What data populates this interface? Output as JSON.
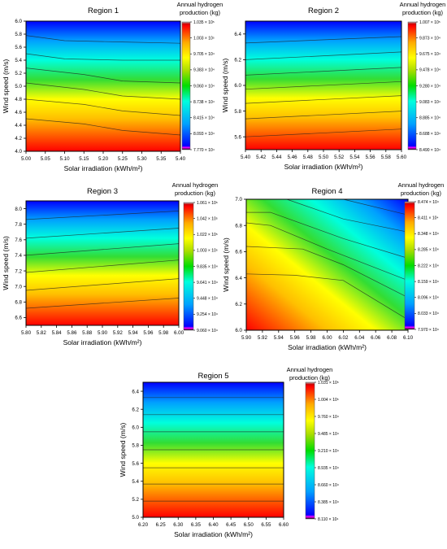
{
  "chart_data": [
    {
      "type": "heatmap",
      "title": "Region 1",
      "xlabel": "Solar irradiation (kWh/m²)",
      "ylabel": "Wind speed (m/s)",
      "xlim": [
        5.0,
        5.4
      ],
      "ylim": [
        4.0,
        6.0
      ],
      "x_ticks": [
        "5.00",
        "5.05",
        "5.10",
        "5.15",
        "5.20",
        "5.25",
        "5.30",
        "5.35",
        "5.40"
      ],
      "y_ticks": [
        "4.0",
        "4.2",
        "4.4",
        "4.6",
        "4.8",
        "5.0",
        "5.2",
        "5.4",
        "5.6",
        "5.8",
        "6.0"
      ],
      "colorbar_title": [
        "Annual hydrogen",
        "production (kg)"
      ],
      "colorbar_range": [
        7.77,
        10.35
      ],
      "colorbar_ticks": [
        "1.035 × 10⁵",
        "1.003 × 10⁵",
        "9.705 × 10⁴",
        "9.383 × 10⁴",
        "9.060 × 10⁴",
        "8.738 × 10⁴",
        "8.415 × 10⁴",
        "8.093 × 10⁴",
        "7.770 × 10⁴"
      ],
      "contour_lines": [
        {
          "x": [
            5.0,
            5.15,
            5.25,
            5.4
          ],
          "y": [
            4.5,
            4.42,
            4.32,
            4.25
          ]
        },
        {
          "x": [
            5.0,
            5.15,
            5.25,
            5.4
          ],
          "y": [
            4.8,
            4.72,
            4.62,
            4.55
          ]
        },
        {
          "x": [
            5.0,
            5.15,
            5.25,
            5.4
          ],
          "y": [
            5.05,
            4.95,
            4.85,
            4.8
          ]
        },
        {
          "x": [
            5.0,
            5.15,
            5.25,
            5.4
          ],
          "y": [
            5.28,
            5.18,
            5.08,
            5.05
          ]
        },
        {
          "x": [
            5.0,
            5.1,
            5.25,
            5.4
          ],
          "y": [
            5.5,
            5.42,
            5.4,
            5.4
          ]
        },
        {
          "x": [
            5.0,
            5.1,
            5.25,
            5.4
          ],
          "y": [
            5.78,
            5.7,
            5.68,
            5.66
          ]
        }
      ]
    },
    {
      "type": "heatmap",
      "title": "Region 2",
      "xlabel": "Solar irradiation (kWh/m²)",
      "ylabel": "Wind speed (m/s)",
      "xlim": [
        5.4,
        5.6
      ],
      "ylim": [
        5.5,
        6.5
      ],
      "x_ticks": [
        "5.40",
        "5.42",
        "5.44",
        "5.46",
        "5.48",
        "5.50",
        "5.52",
        "5.54",
        "5.56",
        "5.58",
        "5.60"
      ],
      "y_ticks": [
        "5.6",
        "5.8",
        "6.0",
        "6.2",
        "6.4"
      ],
      "colorbar_title": [
        "Annual hydrogen",
        "production (kg)"
      ],
      "colorbar_range": [
        8.49,
        10.07
      ],
      "colorbar_ticks": [
        "1.007 × 10⁵",
        "9.873 × 10⁴",
        "9.675 × 10⁴",
        "9.478 × 10⁴",
        "9.280 × 10⁴",
        "9.083 × 10⁴",
        "8.885 × 10⁴",
        "8.688 × 10⁴",
        "8.490 × 10⁴"
      ],
      "contour_lines": [
        {
          "x": [
            5.4,
            5.6
          ],
          "y": [
            5.6,
            5.66
          ]
        },
        {
          "x": [
            5.4,
            5.6
          ],
          "y": [
            5.74,
            5.8
          ]
        },
        {
          "x": [
            5.4,
            5.6
          ],
          "y": [
            5.86,
            5.92
          ]
        },
        {
          "x": [
            5.4,
            5.6
          ],
          "y": [
            5.97,
            6.03
          ]
        },
        {
          "x": [
            5.4,
            5.6
          ],
          "y": [
            6.08,
            6.14
          ]
        },
        {
          "x": [
            5.4,
            5.6
          ],
          "y": [
            6.2,
            6.26
          ]
        },
        {
          "x": [
            5.4,
            5.6
          ],
          "y": [
            6.33,
            6.38
          ]
        }
      ]
    },
    {
      "type": "heatmap",
      "title": "Region 3",
      "xlabel": "Solar irradiation (kWh/m²)",
      "ylabel": "Wind speed (m/s)",
      "xlim": [
        5.8,
        6.0
      ],
      "ylim": [
        6.5,
        8.1
      ],
      "x_ticks": [
        "5.80",
        "5.82",
        "5.84",
        "5.86",
        "5.88",
        "5.90",
        "5.92",
        "5.94",
        "5.96",
        "5.98",
        "6.00"
      ],
      "y_ticks": [
        "6.6",
        "6.8",
        "7.0",
        "7.2",
        "7.4",
        "7.6",
        "7.8",
        "8.0"
      ],
      "colorbar_title": [
        "Annual hydrogen",
        "production (kg)"
      ],
      "colorbar_range": [
        9.06,
        10.61
      ],
      "colorbar_ticks": [
        "1.061 × 10⁵",
        "1.042 × 10⁵",
        "1.022 × 10⁵",
        "1.003 × 10⁵",
        "9.835 × 10⁴",
        "9.641 × 10⁴",
        "9.448 × 10⁴",
        "9.254 × 10⁴",
        "9.060 × 10⁴"
      ],
      "contour_lines": [
        {
          "x": [
            5.8,
            6.0
          ],
          "y": [
            6.72,
            6.85
          ]
        },
        {
          "x": [
            5.8,
            6.0
          ],
          "y": [
            6.95,
            7.1
          ]
        },
        {
          "x": [
            5.8,
            6.0
          ],
          "y": [
            7.18,
            7.34
          ]
        },
        {
          "x": [
            5.8,
            6.0
          ],
          "y": [
            7.4,
            7.55
          ]
        },
        {
          "x": [
            5.8,
            6.0
          ],
          "y": [
            7.62,
            7.75
          ]
        },
        {
          "x": [
            5.8,
            6.0
          ],
          "y": [
            7.86,
            7.97
          ]
        }
      ]
    },
    {
      "type": "heatmap",
      "title": "Region 4",
      "xlabel": "Solar irradiation (kWh/m²)",
      "ylabel": "Wind speed (m/s)",
      "xlim": [
        5.9,
        6.1
      ],
      "ylim": [
        6.0,
        7.0
      ],
      "x_ticks": [
        "5.90",
        "5.92",
        "5.94",
        "5.96",
        "5.98",
        "6.00",
        "6.02",
        "6.04",
        "6.06",
        "6.08",
        "6.10"
      ],
      "y_ticks": [
        "6.0",
        "6.2",
        "6.4",
        "6.6",
        "6.8",
        "7.0"
      ],
      "colorbar_title": [
        "Annual hydrogen",
        "production (kg)"
      ],
      "colorbar_range": [
        7.97,
        8.474
      ],
      "colorbar_ticks": [
        "8.474 × 10⁴",
        "8.411 × 10⁴",
        "8.348 × 10⁴",
        "8.285 × 10⁴",
        "8.222 × 10⁴",
        "8.159 × 10⁴",
        "8.096 × 10⁴",
        "8.033 × 10⁴",
        "7.970 × 10⁴"
      ],
      "contour_lines": [
        {
          "x": [
            5.9,
            5.96,
            6.02,
            6.1
          ],
          "y": [
            6.43,
            6.42,
            6.38,
            6.08
          ]
        },
        {
          "x": [
            5.9,
            5.97,
            6.02,
            6.1
          ],
          "y": [
            6.64,
            6.62,
            6.5,
            6.25
          ]
        },
        {
          "x": [
            5.9,
            5.93,
            6.0,
            6.1
          ],
          "y": [
            6.82,
            6.8,
            6.62,
            6.38
          ]
        },
        {
          "x": [
            5.9,
            5.93,
            6.02,
            6.1
          ],
          "y": [
            6.9,
            6.9,
            6.7,
            6.55
          ]
        },
        {
          "x": [
            5.95,
            6.02,
            6.1
          ],
          "y": [
            7.0,
            6.85,
            6.75
          ]
        },
        {
          "x": [
            6.02,
            6.1
          ],
          "y": [
            7.0,
            6.88
          ]
        }
      ]
    },
    {
      "type": "heatmap",
      "title": "Region 5",
      "xlabel": "Solar irradiation (kWh/m²)",
      "ylabel": "Wind speed (m/s)",
      "xlim": [
        6.2,
        6.6
      ],
      "ylim": [
        5.0,
        6.5
      ],
      "x_ticks": [
        "6.20",
        "6.25",
        "6.30",
        "6.35",
        "6.40",
        "6.45",
        "6.50",
        "6.55",
        "6.60"
      ],
      "y_ticks": [
        "5.0",
        "5.2",
        "5.4",
        "5.6",
        "5.8",
        "6.0",
        "6.2",
        "6.4"
      ],
      "colorbar_title": [
        "Annual hydrogen",
        "production (kg)"
      ],
      "colorbar_range": [
        8.11,
        10.31
      ],
      "colorbar_ticks": [
        "1.031 × 10⁵",
        "1.004 × 10⁵",
        "9.760 × 10⁴",
        "9.485 × 10⁴",
        "9.210 × 10⁴",
        "8.935 × 10⁴",
        "8.660 × 10⁴",
        "8.385 × 10⁴",
        "8.110 × 10⁴"
      ],
      "contour_lines": [
        {
          "x": [
            6.2,
            6.6
          ],
          "y": [
            5.18,
            5.18
          ]
        },
        {
          "x": [
            6.2,
            6.6
          ],
          "y": [
            5.37,
            5.37
          ]
        },
        {
          "x": [
            6.2,
            6.6
          ],
          "y": [
            5.55,
            5.55
          ]
        },
        {
          "x": [
            6.2,
            6.6
          ],
          "y": [
            5.75,
            5.75
          ]
        },
        {
          "x": [
            6.2,
            6.6
          ],
          "y": [
            5.95,
            5.95
          ]
        },
        {
          "x": [
            6.2,
            6.6
          ],
          "y": [
            6.14,
            6.14
          ]
        },
        {
          "x": [
            6.2,
            6.6
          ],
          "y": [
            6.33,
            6.33
          ]
        }
      ]
    }
  ]
}
